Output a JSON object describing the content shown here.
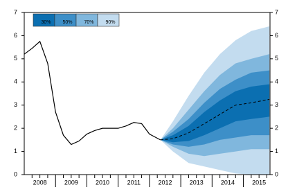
{
  "chart_data": {
    "type": "fan",
    "x": [
      2008.0,
      2008.25,
      2008.5,
      2008.75,
      2009.0,
      2009.25,
      2009.5,
      2009.75,
      2010.0,
      2010.25,
      2010.5,
      2010.75,
      2011.0,
      2011.25,
      2011.5,
      2011.75,
      2012.0,
      2012.35
    ],
    "values": [
      5.2,
      5.45,
      5.75,
      4.8,
      2.7,
      1.7,
      1.3,
      1.45,
      1.75,
      1.9,
      2.0,
      2.0,
      2.0,
      2.1,
      2.25,
      2.2,
      1.75,
      1.5
    ],
    "line_color": "#000000",
    "fan": {
      "x": [
        2012.35,
        2012.75,
        2013.25,
        2013.75,
        2014.25,
        2014.75,
        2015.25,
        2015.83
      ],
      "central": [
        1.5,
        1.55,
        1.8,
        2.2,
        2.6,
        3.0,
        3.1,
        3.25
      ],
      "central_color": "#000000",
      "bands": [
        {
          "name": "30%",
          "color": "#0b6fb1",
          "lower": [
            1.5,
            1.4,
            1.45,
            1.7,
            2.0,
            2.3,
            2.4,
            2.5
          ],
          "upper": [
            1.5,
            1.7,
            2.1,
            2.7,
            3.2,
            3.6,
            3.8,
            3.9
          ]
        },
        {
          "name": "50%",
          "color": "#3d8fc8",
          "lower": [
            1.5,
            1.3,
            1.2,
            1.3,
            1.5,
            1.6,
            1.7,
            1.7
          ],
          "upper": [
            1.5,
            1.85,
            2.4,
            3.1,
            3.7,
            4.1,
            4.4,
            4.5
          ]
        },
        {
          "name": "70%",
          "color": "#80b7dd",
          "lower": [
            1.5,
            1.2,
            0.9,
            0.8,
            0.9,
            1.0,
            1.1,
            1.1
          ],
          "upper": [
            1.5,
            2.0,
            2.8,
            3.6,
            4.3,
            4.8,
            5.0,
            5.2
          ]
        },
        {
          "name": "90%",
          "color": "#c3dcef",
          "lower": [
            1.5,
            1.0,
            0.5,
            0.35,
            0.2,
            0.05,
            0.0,
            0.0
          ],
          "upper": [
            1.5,
            2.3,
            3.4,
            4.4,
            5.2,
            5.8,
            6.2,
            6.4
          ]
        }
      ]
    },
    "xlim": [
      2008.0,
      2015.85
    ],
    "xticks": [
      {
        "value": 2008.5,
        "label": "2008"
      },
      {
        "value": 2009.5,
        "label": "2009"
      },
      {
        "value": 2010.5,
        "label": "2010"
      },
      {
        "value": 2011.5,
        "label": "2011"
      },
      {
        "value": 2012.5,
        "label": "2012"
      },
      {
        "value": 2013.5,
        "label": "2013"
      },
      {
        "value": 2014.5,
        "label": "2014"
      },
      {
        "value": 2015.5,
        "label": "2015"
      }
    ],
    "xminorticks": [
      2008.25,
      2008.5,
      2008.75,
      2009.0,
      2009.25,
      2009.5,
      2009.75,
      2010.0,
      2010.25,
      2010.5,
      2010.75,
      2011.0,
      2011.25,
      2011.5,
      2011.75,
      2012.0,
      2012.25,
      2012.5,
      2012.75,
      2013.0,
      2013.25,
      2013.5,
      2013.75,
      2014.0,
      2014.25,
      2014.5,
      2014.75,
      2015.0,
      2015.25,
      2015.5,
      2015.75
    ],
    "ylim": [
      0,
      7
    ],
    "yticks": [
      0,
      1,
      2,
      3,
      4,
      5,
      6,
      7
    ],
    "y2lim": [
      0,
      7
    ],
    "y2ticks": [
      0,
      1,
      2,
      3,
      4,
      5,
      6,
      7
    ]
  }
}
